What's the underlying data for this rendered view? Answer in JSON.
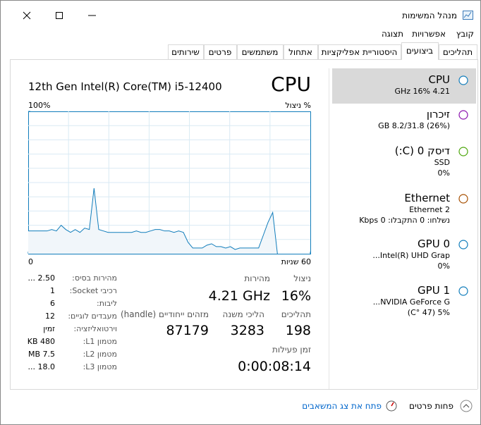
{
  "window": {
    "title": "מנהל המשימות"
  },
  "menu": [
    "קובץ",
    "אפשרויות",
    "תצוגה"
  ],
  "tabs": [
    "תהליכים",
    "ביצועים",
    "היסטוריית אפליקציות",
    "אתחול",
    "משתמשים",
    "פרטים",
    "שירותים"
  ],
  "sidebar": [
    {
      "title": "CPU",
      "lines": [
        "4.21 GHz 16%"
      ]
    },
    {
      "title": "זיכרון",
      "lines": [
        "(26%) 8.2/31.8 GB"
      ]
    },
    {
      "title": "דיסק 0 (C:)",
      "lines": [
        "SSD",
        "0%"
      ]
    },
    {
      "title": "Ethernet",
      "lines": [
        "Ethernet 2",
        "נשלחו: 0 התקבלו: 0 Kbps"
      ]
    },
    {
      "title": "GPU 0",
      "lines": [
        "Intel(R) UHD Grap...",
        "0%"
      ]
    },
    {
      "title": "GPU 1",
      "lines": [
        "NVIDIA GeForce G...",
        "5% (47 °C)"
      ]
    }
  ],
  "main": {
    "title": "CPU",
    "model": "12th Gen Intel(R) Core(TM) i5-12400",
    "graph": {
      "ylabel": "% ניצול",
      "ylim": [
        0,
        100
      ],
      "yticks": [
        {
          "value": 100,
          "label": "100%"
        }
      ],
      "xlim": [
        0,
        60
      ],
      "xticks": [
        0,
        {
          "value": 60,
          "label": "60 שניות"
        }
      ],
      "values": [
        16,
        16,
        16,
        16,
        16,
        17,
        16,
        20,
        17,
        15,
        17,
        15,
        18,
        17,
        46,
        17,
        16,
        15,
        15,
        15,
        15,
        15,
        15,
        16,
        15,
        15,
        16,
        17,
        17,
        16,
        16,
        15,
        16,
        15,
        8,
        4,
        4,
        4,
        6,
        7,
        5,
        5,
        4,
        5,
        3,
        4,
        4,
        4,
        4,
        4,
        13,
        22,
        29,
        0,
        null,
        null,
        null,
        null,
        null,
        null,
        null
      ]
    },
    "stats": [
      {
        "label": "ניצול",
        "value": "16%"
      },
      {
        "label": "מהירות",
        "value": "4.21 GHz"
      },
      {
        "label": "תהליכים",
        "value": "198"
      },
      {
        "label": "הליכי משנה",
        "value": "3283"
      },
      {
        "label": "מזהים ייחודיים (handle)",
        "value": "87179"
      },
      {
        "label": "זמן פעילות",
        "value": "0:00:08:14"
      }
    ],
    "details": [
      {
        "label": "מהירות בסיס:",
        "value": "2.50 ..."
      },
      {
        "label": "רכיבי Socket:",
        "value": "1"
      },
      {
        "label": "ליבות:",
        "value": "6"
      },
      {
        "label": "מעבדים לוגיים:",
        "value": "12"
      },
      {
        "label": "וירטואליזציה:",
        "value": "זמין"
      },
      {
        "label": "מטמון L1:",
        "value": "480 KB"
      },
      {
        "label": "מטמון L2:",
        "value": "7.5 MB"
      },
      {
        "label": "מטמון L3:",
        "value": "18.0 ..."
      }
    ]
  },
  "footer": {
    "less": "פחות פרטים",
    "monitor": "פתח את צג המשאבים"
  }
}
